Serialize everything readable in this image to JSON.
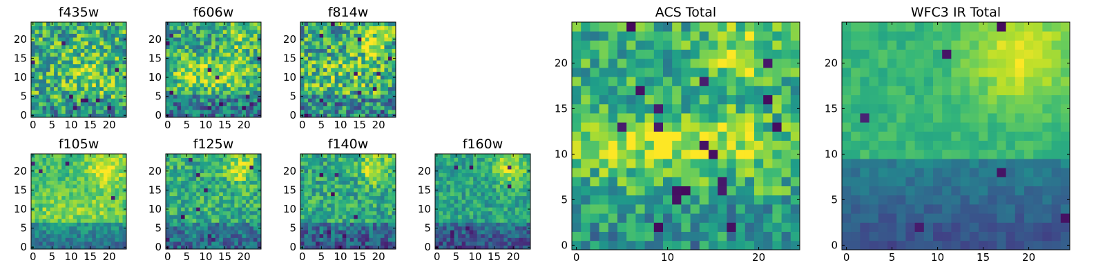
{
  "chart_data": [
    {
      "type": "heatmap",
      "id": "f435w",
      "title": "f435w",
      "colormap": "viridis",
      "grid": false,
      "size": 25,
      "xlim": [
        0,
        24
      ],
      "ylim": [
        0,
        24
      ],
      "xticks": [
        0,
        5,
        10,
        15,
        20
      ],
      "yticks": [
        0,
        5,
        10,
        15,
        20
      ],
      "value_range": [
        0,
        1
      ],
      "features": {
        "base": 0.64,
        "noise": 0.3,
        "blob": [
          14,
          11,
          0.18,
          4
        ],
        "low_rows": [
          0,
          4,
          -0.15
        ],
        "dark_cells": 9,
        "seed": 11
      }
    },
    {
      "type": "heatmap",
      "id": "f606w",
      "title": "f606w",
      "colormap": "viridis",
      "grid": false,
      "size": 25,
      "xlim": [
        0,
        24
      ],
      "ylim": [
        0,
        24
      ],
      "xticks": [
        0,
        5,
        10,
        15,
        20
      ],
      "yticks": [
        0,
        5,
        10,
        15,
        20
      ],
      "value_range": [
        0,
        1
      ],
      "features": {
        "base": 0.58,
        "noise": 0.26,
        "band": [
          11,
          3,
          0.28
        ],
        "blob": [
          19,
          21,
          0.25,
          3
        ],
        "low_rows": [
          0,
          5,
          -0.2
        ],
        "dark_cells": 12,
        "seed": 23
      }
    },
    {
      "type": "heatmap",
      "id": "f814w",
      "title": "f814w",
      "colormap": "viridis",
      "grid": false,
      "size": 25,
      "xlim": [
        0,
        24
      ],
      "ylim": [
        0,
        24
      ],
      "xticks": [
        0,
        5,
        10,
        15,
        20
      ],
      "yticks": [
        0,
        5,
        10,
        15,
        20
      ],
      "value_range": [
        0,
        1
      ],
      "features": {
        "base": 0.6,
        "noise": 0.32,
        "blob": [
          18,
          20,
          0.3,
          3
        ],
        "band": [
          11,
          3,
          0.12
        ],
        "low_rows": [
          0,
          5,
          -0.15
        ],
        "dark_cells": 10,
        "seed": 37
      }
    },
    {
      "type": "heatmap",
      "id": "f105w",
      "title": "f105w",
      "colormap": "viridis",
      "grid": false,
      "size": 25,
      "xlim": [
        0,
        24
      ],
      "ylim": [
        0,
        24
      ],
      "xticks": [
        0,
        5,
        10,
        15,
        20
      ],
      "yticks": [
        0,
        5,
        10,
        15,
        20
      ],
      "value_range": [
        0,
        1
      ],
      "features": {
        "base": 0.68,
        "noise": 0.14,
        "blob": [
          19,
          21,
          0.28,
          4
        ],
        "band": [
          10,
          3,
          0.14
        ],
        "low_rows": [
          0,
          6,
          -0.32
        ],
        "dark_cells": 4,
        "seed": 41
      }
    },
    {
      "type": "heatmap",
      "id": "f125w",
      "title": "f125w",
      "colormap": "viridis",
      "grid": false,
      "size": 25,
      "xlim": [
        0,
        24
      ],
      "ylim": [
        0,
        24
      ],
      "xticks": [
        0,
        5,
        10,
        15,
        20
      ],
      "yticks": [
        0,
        5,
        10,
        15,
        20
      ],
      "value_range": [
        0,
        1
      ],
      "features": {
        "base": 0.62,
        "noise": 0.2,
        "blob": [
          19,
          21,
          0.3,
          3
        ],
        "low_rows": [
          0,
          6,
          -0.3
        ],
        "dark_cells": 9,
        "seed": 53
      }
    },
    {
      "type": "heatmap",
      "id": "f140w",
      "title": "f140w",
      "colormap": "viridis",
      "grid": false,
      "size": 25,
      "xlim": [
        0,
        24
      ],
      "ylim": [
        0,
        24
      ],
      "xticks": [
        0,
        5,
        10,
        15,
        20
      ],
      "yticks": [
        0,
        5,
        10,
        15,
        20
      ],
      "value_range": [
        0,
        1
      ],
      "features": {
        "base": 0.6,
        "noise": 0.2,
        "blob": [
          19,
          21,
          0.3,
          3
        ],
        "low_rows": [
          0,
          6,
          -0.35
        ],
        "dark_cells": 8,
        "seed": 67
      }
    },
    {
      "type": "heatmap",
      "id": "f160w",
      "title": "f160w",
      "colormap": "viridis",
      "grid": false,
      "size": 25,
      "xlim": [
        0,
        24
      ],
      "ylim": [
        0,
        24
      ],
      "xticks": [
        0,
        5,
        10,
        15,
        20
      ],
      "yticks": [
        0,
        5,
        10,
        15,
        20
      ],
      "value_range": [
        0,
        1
      ],
      "features": {
        "base": 0.58,
        "noise": 0.16,
        "blob": [
          19,
          21,
          0.35,
          3
        ],
        "low_rows": [
          0,
          6,
          -0.36
        ],
        "dark_cells": 8,
        "seed": 79
      }
    },
    {
      "type": "heatmap",
      "id": "acs_total",
      "title": "ACS Total",
      "colormap": "viridis",
      "grid": false,
      "size": 25,
      "xlim": [
        0,
        24
      ],
      "ylim": [
        0,
        24
      ],
      "xticks": [
        0,
        10,
        20
      ],
      "yticks": [
        0,
        5,
        10,
        15,
        20
      ],
      "value_range": [
        0,
        1
      ],
      "features": {
        "base": 0.62,
        "noise": 0.22,
        "band": [
          11,
          2,
          0.3
        ],
        "blob": [
          18,
          21,
          0.25,
          3
        ],
        "low_rows": [
          0,
          5,
          -0.12
        ],
        "dark_cells": 18,
        "seed": 97
      }
    },
    {
      "type": "heatmap",
      "id": "wfc3_ir_total",
      "title": "WFC3 IR Total",
      "colormap": "viridis",
      "grid": false,
      "size": 25,
      "xlim": [
        0,
        24
      ],
      "ylim": [
        0,
        24
      ],
      "xticks": [
        0,
        5,
        10,
        15,
        20
      ],
      "yticks": [
        0,
        5,
        10,
        15,
        20
      ],
      "value_range": [
        0,
        1
      ],
      "features": {
        "base": 0.66,
        "noise": 0.07,
        "blob": [
          19,
          21,
          0.3,
          4
        ],
        "low_rows": [
          0,
          9,
          -0.42
        ],
        "dark_cells": 6,
        "seed": 113
      }
    }
  ]
}
